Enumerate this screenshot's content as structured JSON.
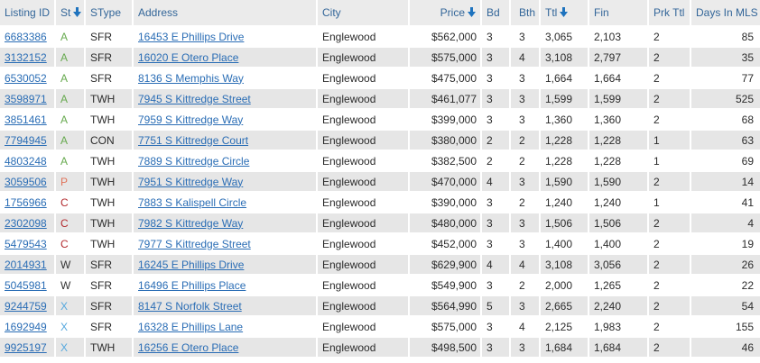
{
  "colors": {
    "header_text": "#336699",
    "header_bg": "#ebebeb",
    "row_bg": "#ffffff",
    "row_alt_bg": "#e6e6e6",
    "link": "#2a6db5",
    "text": "#2b2b2b",
    "sort_arrow": "#1e73be",
    "status_A": "#66a94e",
    "status_P": "#e0735a",
    "status_C": "#b22a2e",
    "status_W": "#333333",
    "status_X": "#55a8de"
  },
  "table": {
    "columns": [
      {
        "key": "listing_id",
        "label": "Listing ID",
        "sorted": false
      },
      {
        "key": "st",
        "label": "St",
        "sorted": true
      },
      {
        "key": "stype",
        "label": "SType",
        "sorted": false
      },
      {
        "key": "address",
        "label": "Address",
        "sorted": false
      },
      {
        "key": "city",
        "label": "City",
        "sorted": false
      },
      {
        "key": "price",
        "label": "Price",
        "sorted": true
      },
      {
        "key": "bd",
        "label": "Bd",
        "sorted": false
      },
      {
        "key": "bth",
        "label": "Bth",
        "sorted": false
      },
      {
        "key": "ttl",
        "label": "Ttl",
        "sorted": true
      },
      {
        "key": "fin",
        "label": "Fin",
        "sorted": false
      },
      {
        "key": "prk_ttl",
        "label": "Prk Ttl",
        "sorted": false
      },
      {
        "key": "days_in_mls",
        "label": "Days In MLS",
        "sorted": false
      }
    ],
    "rows": [
      {
        "listing_id": "6683386",
        "st": "A",
        "stype": "SFR",
        "address": "16453 E Phillips Drive",
        "city": "Englewood",
        "price": "$562,000",
        "bd": "3",
        "bth": "3",
        "ttl": "3,065",
        "fin": "2,103",
        "prk_ttl": "2",
        "days_in_mls": "85"
      },
      {
        "listing_id": "3132152",
        "st": "A",
        "stype": "SFR",
        "address": "16020 E Otero Place",
        "city": "Englewood",
        "price": "$575,000",
        "bd": "3",
        "bth": "4",
        "ttl": "3,108",
        "fin": "2,797",
        "prk_ttl": "2",
        "days_in_mls": "35"
      },
      {
        "listing_id": "6530052",
        "st": "A",
        "stype": "SFR",
        "address": "8136 S Memphis Way",
        "city": "Englewood",
        "price": "$475,000",
        "bd": "3",
        "bth": "3",
        "ttl": "1,664",
        "fin": "1,664",
        "prk_ttl": "2",
        "days_in_mls": "77"
      },
      {
        "listing_id": "3598971",
        "st": "A",
        "stype": "TWH",
        "address": "7945 S Kittredge Street",
        "city": "Englewood",
        "price": "$461,077",
        "bd": "3",
        "bth": "3",
        "ttl": "1,599",
        "fin": "1,599",
        "prk_ttl": "2",
        "days_in_mls": "525"
      },
      {
        "listing_id": "3851461",
        "st": "A",
        "stype": "TWH",
        "address": "7959 S Kittredge Way",
        "city": "Englewood",
        "price": "$399,000",
        "bd": "3",
        "bth": "3",
        "ttl": "1,360",
        "fin": "1,360",
        "prk_ttl": "2",
        "days_in_mls": "68"
      },
      {
        "listing_id": "7794945",
        "st": "A",
        "stype": "CON",
        "address": "7751 S Kittredge Court",
        "city": "Englewood",
        "price": "$380,000",
        "bd": "2",
        "bth": "2",
        "ttl": "1,228",
        "fin": "1,228",
        "prk_ttl": "1",
        "days_in_mls": "63"
      },
      {
        "listing_id": "4803248",
        "st": "A",
        "stype": "TWH",
        "address": "7889 S Kittredge Circle",
        "city": "Englewood",
        "price": "$382,500",
        "bd": "2",
        "bth": "2",
        "ttl": "1,228",
        "fin": "1,228",
        "prk_ttl": "1",
        "days_in_mls": "69"
      },
      {
        "listing_id": "3059506",
        "st": "P",
        "stype": "TWH",
        "address": "7951 S Kittredge Way",
        "city": "Englewood",
        "price": "$470,000",
        "bd": "4",
        "bth": "3",
        "ttl": "1,590",
        "fin": "1,590",
        "prk_ttl": "2",
        "days_in_mls": "14"
      },
      {
        "listing_id": "1756966",
        "st": "C",
        "stype": "TWH",
        "address": "7883 S Kalispell Circle",
        "city": "Englewood",
        "price": "$390,000",
        "bd": "3",
        "bth": "2",
        "ttl": "1,240",
        "fin": "1,240",
        "prk_ttl": "1",
        "days_in_mls": "41"
      },
      {
        "listing_id": "2302098",
        "st": "C",
        "stype": "TWH",
        "address": "7982 S Kittredge Way",
        "city": "Englewood",
        "price": "$480,000",
        "bd": "3",
        "bth": "3",
        "ttl": "1,506",
        "fin": "1,506",
        "prk_ttl": "2",
        "days_in_mls": "4"
      },
      {
        "listing_id": "5479543",
        "st": "C",
        "stype": "TWH",
        "address": "7977 S Kittredge Street",
        "city": "Englewood",
        "price": "$452,000",
        "bd": "3",
        "bth": "3",
        "ttl": "1,400",
        "fin": "1,400",
        "prk_ttl": "2",
        "days_in_mls": "19"
      },
      {
        "listing_id": "2014931",
        "st": "W",
        "stype": "SFR",
        "address": "16245 E Phillips Drive",
        "city": "Englewood",
        "price": "$629,900",
        "bd": "4",
        "bth": "4",
        "ttl": "3,108",
        "fin": "3,056",
        "prk_ttl": "2",
        "days_in_mls": "26"
      },
      {
        "listing_id": "5045981",
        "st": "W",
        "stype": "SFR",
        "address": "16496 E Phillips Place",
        "city": "Englewood",
        "price": "$549,900",
        "bd": "3",
        "bth": "2",
        "ttl": "2,000",
        "fin": "1,265",
        "prk_ttl": "2",
        "days_in_mls": "22"
      },
      {
        "listing_id": "9244759",
        "st": "X",
        "stype": "SFR",
        "address": "8147 S Norfolk Street",
        "city": "Englewood",
        "price": "$564,990",
        "bd": "5",
        "bth": "3",
        "ttl": "2,665",
        "fin": "2,240",
        "prk_ttl": "2",
        "days_in_mls": "54"
      },
      {
        "listing_id": "1692949",
        "st": "X",
        "stype": "SFR",
        "address": "16328 E Phillips Lane",
        "city": "Englewood",
        "price": "$575,000",
        "bd": "3",
        "bth": "4",
        "ttl": "2,125",
        "fin": "1,983",
        "prk_ttl": "2",
        "days_in_mls": "155"
      },
      {
        "listing_id": "9925197",
        "st": "X",
        "stype": "TWH",
        "address": "16256 E Otero Place",
        "city": "Englewood",
        "price": "$498,500",
        "bd": "3",
        "bth": "3",
        "ttl": "1,684",
        "fin": "1,684",
        "prk_ttl": "2",
        "days_in_mls": "46"
      }
    ]
  }
}
